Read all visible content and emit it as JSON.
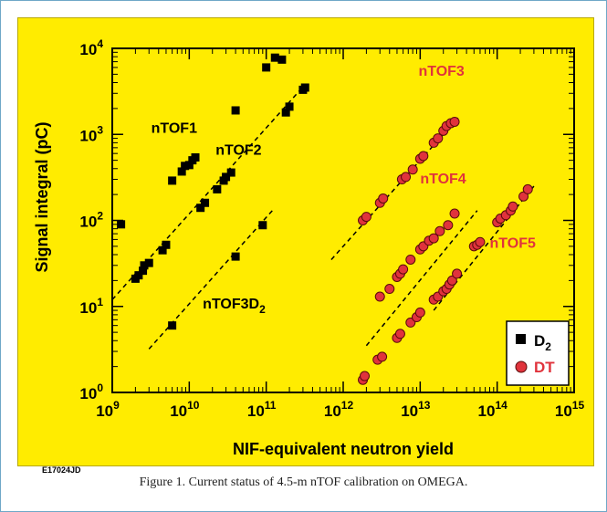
{
  "caption": "Figure 1. Current status of 4.5-m nTOF calibration on OMEGA.",
  "figure_id": "E17024JD",
  "colors": {
    "background": "#ffec00",
    "d2": "#000000",
    "dt_fill": "#e0333c",
    "dt_stroke": "#5a0a0a",
    "dt_text": "#e0333c"
  },
  "chart_data": {
    "type": "scatter",
    "xlabel": "NIF-equivalent neutron yield",
    "ylabel": "Signal integral (pC)",
    "x_scale": "log",
    "y_scale": "log",
    "xlim": [
      1000000000.0,
      1000000000000000.0
    ],
    "ylim": [
      1,
      10000
    ],
    "x_ticks": [
      {
        "value": 1000000000.0,
        "base": "10",
        "exp": "9"
      },
      {
        "value": 10000000000.0,
        "base": "10",
        "exp": "10"
      },
      {
        "value": 100000000000.0,
        "base": "10",
        "exp": "11"
      },
      {
        "value": 1000000000000.0,
        "base": "10",
        "exp": "12"
      },
      {
        "value": 10000000000000.0,
        "base": "10",
        "exp": "13"
      },
      {
        "value": 100000000000000.0,
        "base": "10",
        "exp": "14"
      },
      {
        "value": 1000000000000000.0,
        "base": "10",
        "exp": "15"
      }
    ],
    "y_ticks": [
      {
        "value": 1,
        "base": "10",
        "exp": "0"
      },
      {
        "value": 10,
        "base": "10",
        "exp": "1"
      },
      {
        "value": 100,
        "base": "10",
        "exp": "2"
      },
      {
        "value": 1000,
        "base": "10",
        "exp": "3"
      },
      {
        "value": 10000,
        "base": "10",
        "exp": "4"
      }
    ],
    "series": [
      {
        "name": "D",
        "name_sub": "2",
        "marker": "square",
        "points": [
          [
            1300000000.0,
            90
          ],
          [
            2000000000.0,
            21
          ],
          [
            2200000000.0,
            23
          ],
          [
            2500000000.0,
            26
          ],
          [
            2600000000.0,
            30
          ],
          [
            3000000000.0,
            32
          ],
          [
            4500000000.0,
            45
          ],
          [
            5000000000.0,
            52
          ],
          [
            6000000000.0,
            290
          ],
          [
            8000000000.0,
            370
          ],
          [
            8800000000.0,
            430
          ],
          [
            10000000000.0,
            440
          ],
          [
            11000000000.0,
            500
          ],
          [
            12000000000.0,
            540
          ],
          [
            14000000000.0,
            140
          ],
          [
            16000000000.0,
            160
          ],
          [
            23000000000.0,
            230
          ],
          [
            28000000000.0,
            290
          ],
          [
            30000000000.0,
            320
          ],
          [
            35000000000.0,
            360
          ],
          [
            40000000000.0,
            1900
          ],
          [
            6000000000.0,
            6
          ],
          [
            40000000000.0,
            38
          ],
          [
            90000000000.0,
            88
          ],
          [
            100000000000.0,
            6000
          ],
          [
            130000000000.0,
            7800
          ],
          [
            160000000000.0,
            7400
          ],
          [
            180000000000.0,
            1800
          ],
          [
            200000000000.0,
            2100
          ],
          [
            300000000000.0,
            3300
          ],
          [
            320000000000.0,
            3500
          ]
        ]
      },
      {
        "name": "DT",
        "marker": "circle",
        "points": [
          [
            1800000000000.0,
            100
          ],
          [
            2000000000000.0,
            110
          ],
          [
            3000000000000.0,
            160
          ],
          [
            3300000000000.0,
            180
          ],
          [
            5800000000000.0,
            300
          ],
          [
            6500000000000.0,
            320
          ],
          [
            8000000000000.0,
            390
          ],
          [
            10000000000000.0,
            520
          ],
          [
            11000000000000.0,
            560
          ],
          [
            15000000000000.0,
            800
          ],
          [
            17000000000000.0,
            900
          ],
          [
            20000000000000.0,
            1100
          ],
          [
            22000000000000.0,
            1250
          ],
          [
            25000000000000.0,
            1350
          ],
          [
            28000000000000.0,
            1400
          ],
          [
            3000000000000.0,
            13
          ],
          [
            4000000000000.0,
            16
          ],
          [
            5000000000000.0,
            22
          ],
          [
            5500000000000.0,
            24
          ],
          [
            6000000000000.0,
            27
          ],
          [
            7500000000000.0,
            35
          ],
          [
            10000000000000.0,
            46
          ],
          [
            11000000000000.0,
            50
          ],
          [
            13000000000000.0,
            58
          ],
          [
            15000000000000.0,
            62
          ],
          [
            18000000000000.0,
            75
          ],
          [
            23000000000000.0,
            88
          ],
          [
            28000000000000.0,
            120
          ],
          [
            15000000000000.0,
            12
          ],
          [
            17000000000000.0,
            13
          ],
          [
            20000000000000.0,
            15
          ],
          [
            22000000000000.0,
            16
          ],
          [
            24000000000000.0,
            18
          ],
          [
            26000000000000.0,
            20
          ],
          [
            30000000000000.0,
            24
          ],
          [
            50000000000000.0,
            50
          ],
          [
            55000000000000.0,
            52
          ],
          [
            60000000000000.0,
            56
          ],
          [
            100000000000000.0,
            95
          ],
          [
            110000000000000.0,
            105
          ],
          [
            130000000000000.0,
            115
          ],
          [
            150000000000000.0,
            130
          ],
          [
            160000000000000.0,
            145
          ],
          [
            220000000000000.0,
            190
          ],
          [
            250000000000000.0,
            230
          ],
          [
            1800000000000.0,
            1.4
          ],
          [
            1900000000000.0,
            1.55
          ],
          [
            2800000000000.0,
            2.4
          ],
          [
            3200000000000.0,
            2.6
          ],
          [
            5000000000000.0,
            4.3
          ],
          [
            5500000000000.0,
            4.8
          ],
          [
            7500000000000.0,
            6.5
          ],
          [
            9000000000000.0,
            7.5
          ],
          [
            10000000000000.0,
            8.5
          ]
        ]
      }
    ],
    "fit_lines": [
      {
        "label": "nTOF1",
        "from": [
          1000000000.0,
          12
        ],
        "to": [
          320000000000.0,
          3800
        ]
      },
      {
        "label": "nTOF3D2",
        "from": [
          3000000000.0,
          3.2
        ],
        "to": [
          120000000000.0,
          130
        ]
      },
      {
        "label": "nTOF3",
        "from": [
          700000000000.0,
          35
        ],
        "to": [
          31000000000000.0,
          1550
        ]
      },
      {
        "label": "nTOF4",
        "from": [
          2000000000000.0,
          3.5
        ],
        "to": [
          55000000000000.0,
          130
        ]
      },
      {
        "label": "nTOF5",
        "from": [
          15000000000000.0,
          9
        ],
        "to": [
          300000000000000.0,
          250
        ]
      }
    ],
    "annotations": [
      {
        "text": "nTOF1",
        "sub": "",
        "x": 3200000000.0,
        "y": 1050,
        "color": "black"
      },
      {
        "text": "nTOF2",
        "sub": "",
        "x": 22000000000.0,
        "y": 580,
        "color": "black"
      },
      {
        "text": "nTOF3D",
        "sub": "2",
        "x": 15000000000.0,
        "y": 9.5,
        "color": "black"
      },
      {
        "text": "nTOF3",
        "sub": "",
        "x": 9500000000000.0,
        "y": 4800,
        "color": "red"
      },
      {
        "text": "nTOF4",
        "sub": "",
        "x": 10000000000000.0,
        "y": 270,
        "color": "red"
      },
      {
        "text": "nTOF5",
        "sub": "",
        "x": 80000000000000.0,
        "y": 48,
        "color": "red"
      }
    ],
    "legend": {
      "position": "bottom-right"
    },
    "grid": false
  }
}
